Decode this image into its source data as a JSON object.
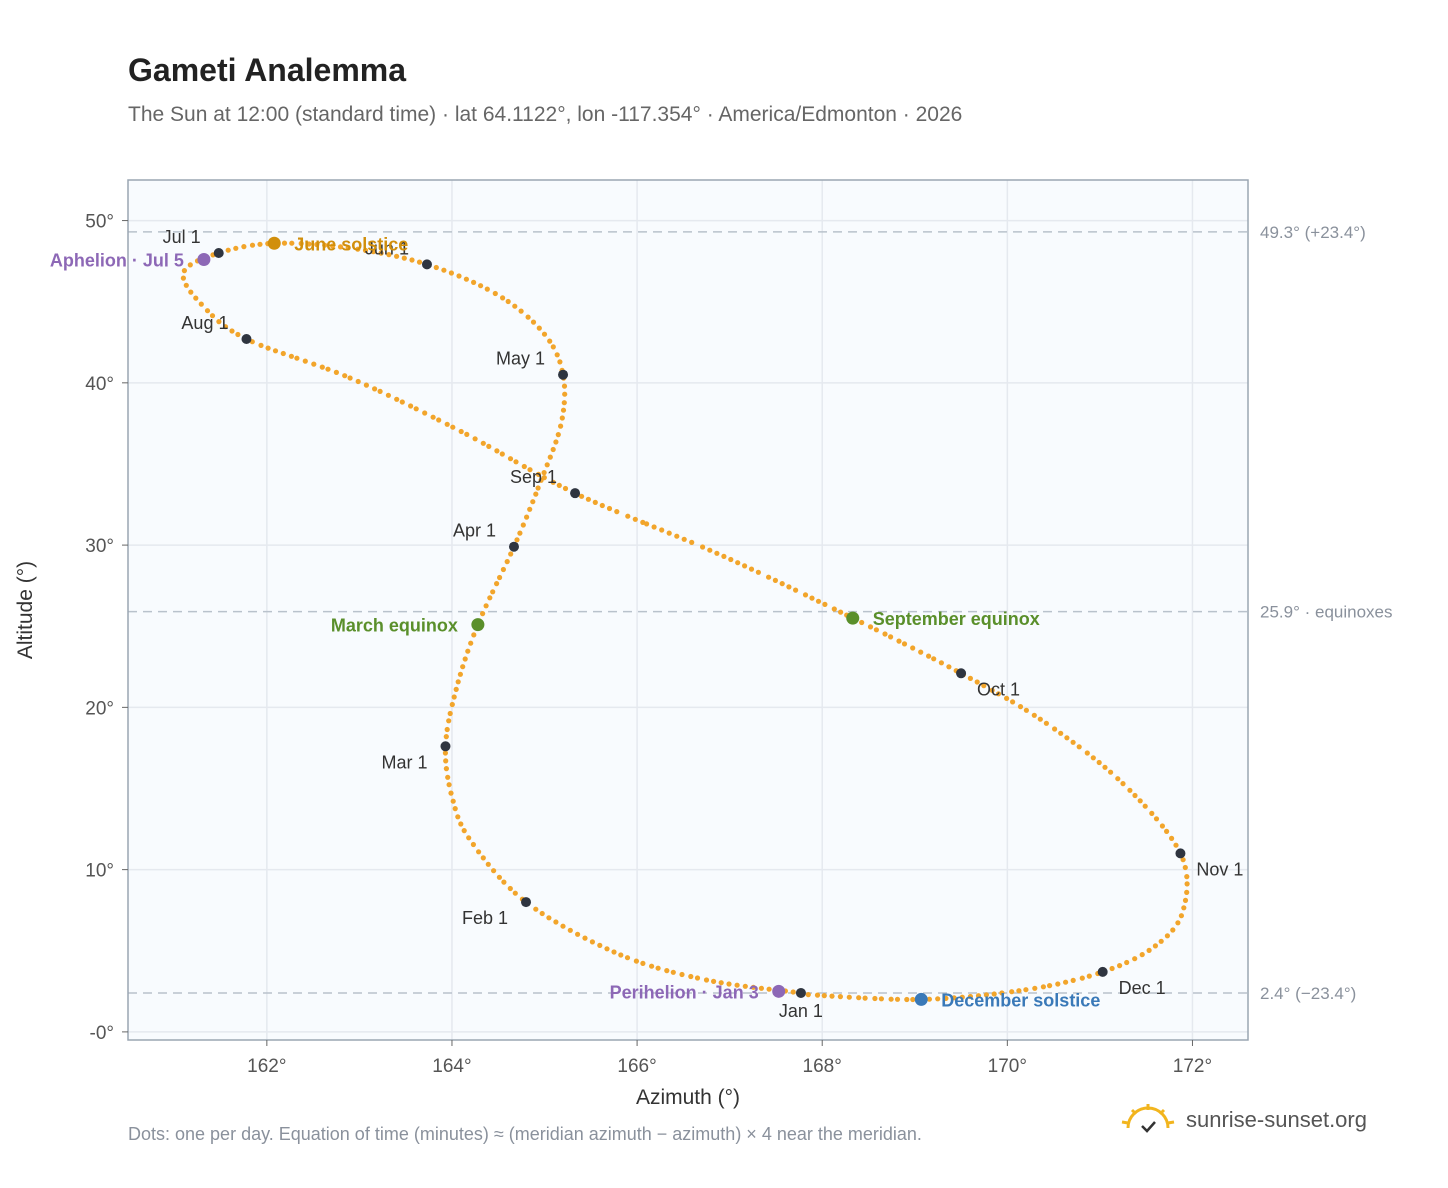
{
  "header": {
    "title": "Gameti Analemma",
    "subtitle": "The Sun at 12:00 (standard time) · lat 64.1122°, lon -117.354° · America/Edmonton · 2026"
  },
  "footer": {
    "note": "Dots: one per day. Equation of time (minutes) ≈ (meridian azimuth − azimuth) × 4 near the meridian.",
    "brand": "sunrise-sunset.org",
    "brand_icon": "sun-logo-icon"
  },
  "colors": {
    "curve": "#f2a52b",
    "month_marker": "#2f3540",
    "plot_bg": "#f8fbfe",
    "grid": "#e5e9ef",
    "frame": "#9aa6b2",
    "ref_line": "#b9c2cc",
    "solstice_june": "#d18f0c",
    "equinox": "#5a8f2b",
    "solstice_december": "#3a79b8",
    "apsis": "#8d68b6"
  },
  "chart_data": {
    "type": "scatter",
    "xlabel": "Azimuth (°)",
    "ylabel": "Altitude (°)",
    "xlim": [
      160.5,
      172.6
    ],
    "ylim": [
      -0.5,
      52.5
    ],
    "x_ticks": [
      162,
      164,
      166,
      168,
      170,
      172
    ],
    "x_tick_labels": [
      "162°",
      "164°",
      "166°",
      "168°",
      "170°",
      "172°"
    ],
    "y_ticks": [
      0,
      10,
      20,
      30,
      40,
      50
    ],
    "y_tick_labels": [
      "-0°",
      "10°",
      "20°",
      "30°",
      "40°",
      "50°"
    ],
    "grid": true,
    "series": [
      {
        "name": "daily sun position",
        "smooth_curve": true,
        "points": [
          {
            "date": "2026-01-01",
            "x": 167.77,
            "y": 2.4
          },
          {
            "date": "2026-01-10",
            "x": 166.75,
            "y": 3.2
          },
          {
            "date": "2026-01-20",
            "x": 165.8,
            "y": 4.8
          },
          {
            "date": "2026-02-01",
            "x": 164.8,
            "y": 8.0
          },
          {
            "date": "2026-02-12",
            "x": 164.2,
            "y": 11.8
          },
          {
            "date": "2026-02-20",
            "x": 164.0,
            "y": 14.5
          },
          {
            "date": "2026-03-01",
            "x": 163.93,
            "y": 17.6
          },
          {
            "date": "2026-03-10",
            "x": 164.05,
            "y": 21.2
          },
          {
            "date": "2026-03-20",
            "x": 164.28,
            "y": 25.1
          },
          {
            "date": "2026-04-01",
            "x": 164.67,
            "y": 29.9
          },
          {
            "date": "2026-04-10",
            "x": 164.95,
            "y": 33.8
          },
          {
            "date": "2026-04-20",
            "x": 165.18,
            "y": 37.5
          },
          {
            "date": "2026-05-01",
            "x": 165.2,
            "y": 40.5
          },
          {
            "date": "2026-05-10",
            "x": 165.0,
            "y": 43.0
          },
          {
            "date": "2026-05-20",
            "x": 164.5,
            "y": 45.4
          },
          {
            "date": "2026-06-01",
            "x": 163.73,
            "y": 47.3
          },
          {
            "date": "2026-06-10",
            "x": 162.9,
            "y": 48.3
          },
          {
            "date": "2026-06-21",
            "x": 162.08,
            "y": 48.6
          },
          {
            "date": "2026-07-01",
            "x": 161.48,
            "y": 48.0
          },
          {
            "date": "2026-07-10",
            "x": 161.1,
            "y": 46.8
          },
          {
            "date": "2026-07-20",
            "x": 161.3,
            "y": 44.8
          },
          {
            "date": "2026-08-01",
            "x": 161.78,
            "y": 42.7
          },
          {
            "date": "2026-08-10",
            "x": 162.9,
            "y": 40.3
          },
          {
            "date": "2026-08-20",
            "x": 164.1,
            "y": 37.0
          },
          {
            "date": "2026-09-01",
            "x": 165.33,
            "y": 33.2
          },
          {
            "date": "2026-09-12",
            "x": 166.9,
            "y": 29.4
          },
          {
            "date": "2026-09-22",
            "x": 168.33,
            "y": 25.5
          },
          {
            "date": "2026-10-01",
            "x": 169.5,
            "y": 22.1
          },
          {
            "date": "2026-10-10",
            "x": 170.4,
            "y": 19.1
          },
          {
            "date": "2026-10-20",
            "x": 171.25,
            "y": 15.3
          },
          {
            "date": "2026-11-01",
            "x": 171.87,
            "y": 11.0
          },
          {
            "date": "2026-11-12",
            "x": 171.9,
            "y": 7.5
          },
          {
            "date": "2026-11-20",
            "x": 171.6,
            "y": 5.3
          },
          {
            "date": "2026-12-01",
            "x": 171.03,
            "y": 3.7
          },
          {
            "date": "2026-12-10",
            "x": 170.2,
            "y": 2.6
          },
          {
            "date": "2026-12-21",
            "x": 169.07,
            "y": 2.0
          },
          {
            "date": "2026-12-31",
            "x": 167.85,
            "y": 2.3
          }
        ]
      }
    ],
    "month_markers": [
      {
        "label": "Jan 1",
        "x": 167.77,
        "y": 2.4,
        "label_side": "below"
      },
      {
        "label": "Feb 1",
        "x": 164.8,
        "y": 8.0,
        "label_side": "below-left"
      },
      {
        "label": "Mar 1",
        "x": 163.93,
        "y": 17.6,
        "label_side": "below-left"
      },
      {
        "label": "Apr 1",
        "x": 164.67,
        "y": 29.9,
        "label_side": "above-left"
      },
      {
        "label": "May 1",
        "x": 165.2,
        "y": 40.5,
        "label_side": "above-left"
      },
      {
        "label": "Jun 1",
        "x": 163.73,
        "y": 47.3,
        "label_side": "above-left"
      },
      {
        "label": "Jul 1",
        "x": 161.48,
        "y": 48.0,
        "label_side": "above-left"
      },
      {
        "label": "Aug 1",
        "x": 161.78,
        "y": 42.7,
        "label_side": "above-left"
      },
      {
        "label": "Sep 1",
        "x": 165.33,
        "y": 33.2,
        "label_side": "above-left"
      },
      {
        "label": "Oct 1",
        "x": 169.5,
        "y": 22.1,
        "label_side": "below-right"
      },
      {
        "label": "Nov 1",
        "x": 171.87,
        "y": 11.0,
        "label_side": "below-right"
      },
      {
        "label": "Dec 1",
        "x": 171.03,
        "y": 3.7,
        "label_side": "below-right"
      }
    ],
    "events": [
      {
        "label": "June solstice",
        "x": 162.08,
        "y": 48.6,
        "color": "#d18f0c",
        "label_side": "right"
      },
      {
        "label": "Aphelion · Jul 5",
        "x": 161.32,
        "y": 47.6,
        "color": "#8d68b6",
        "label_side": "left"
      },
      {
        "label": "March equinox",
        "x": 164.28,
        "y": 25.1,
        "color": "#5a8f2b",
        "label_side": "left"
      },
      {
        "label": "September equinox",
        "x": 168.33,
        "y": 25.5,
        "color": "#5a8f2b",
        "label_side": "right"
      },
      {
        "label": "Perihelion · Jan 3",
        "x": 167.53,
        "y": 2.5,
        "color": "#8d68b6",
        "label_side": "left"
      },
      {
        "label": "December solstice",
        "x": 169.07,
        "y": 2.0,
        "color": "#3a79b8",
        "label_side": "right"
      }
    ],
    "reference_lines": [
      {
        "y": 49.3,
        "label": "49.3° (+23.4°)"
      },
      {
        "y": 25.9,
        "label": "25.9° · equinoxes"
      },
      {
        "y": 2.4,
        "label": "2.4° (−23.4°)"
      }
    ]
  }
}
